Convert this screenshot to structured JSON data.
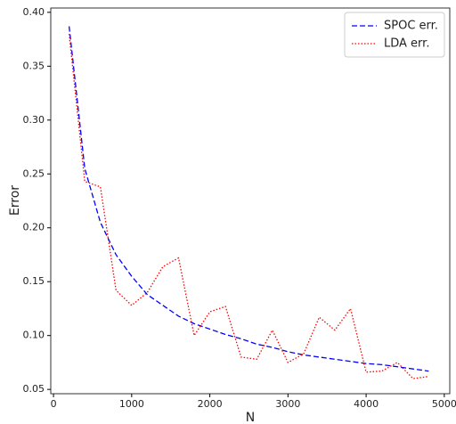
{
  "chart_data": {
    "type": "line",
    "x_label": "N",
    "y_label": "Error",
    "x": [
      200,
      400,
      600,
      800,
      1000,
      1200,
      1400,
      1600,
      1800,
      2000,
      2200,
      2400,
      2600,
      2800,
      3000,
      3200,
      3400,
      3600,
      3800,
      4000,
      4200,
      4400,
      4600,
      4800
    ],
    "series": [
      {
        "name": "SPOC err.",
        "color": "#0000ff",
        "linestyle": "dashed",
        "values": [
          0.387,
          0.255,
          0.205,
          0.175,
          0.155,
          0.138,
          0.128,
          0.118,
          0.111,
          0.106,
          0.101,
          0.097,
          0.092,
          0.089,
          0.085,
          0.082,
          0.08,
          0.078,
          0.076,
          0.074,
          0.073,
          0.071,
          0.069,
          0.067
        ]
      },
      {
        "name": "LDA err.",
        "color": "#ff0000",
        "linestyle": "dotted",
        "values": [
          0.38,
          0.243,
          0.238,
          0.142,
          0.128,
          0.14,
          0.164,
          0.172,
          0.1,
          0.122,
          0.127,
          0.08,
          0.078,
          0.105,
          0.075,
          0.083,
          0.117,
          0.105,
          0.125,
          0.066,
          0.067,
          0.075,
          0.06,
          0.062
        ]
      }
    ],
    "xlim": [
      -35,
      5070
    ],
    "ylim": [
      0.046,
      0.404
    ],
    "xticks": [
      0,
      1000,
      2000,
      3000,
      4000,
      5000
    ],
    "yticks": [
      {
        "value": 0.05,
        "label": "0.05"
      },
      {
        "value": 0.1,
        "label": "0.10"
      },
      {
        "value": 0.15,
        "label": "0.15"
      },
      {
        "value": 0.2,
        "label": "0.20"
      },
      {
        "value": 0.25,
        "label": "0.25"
      },
      {
        "value": 0.3,
        "label": "0.30"
      },
      {
        "value": 0.35,
        "label": "0.35"
      },
      {
        "value": 0.4,
        "label": "0.40"
      }
    ],
    "legend": "upper right",
    "grid": false
  }
}
